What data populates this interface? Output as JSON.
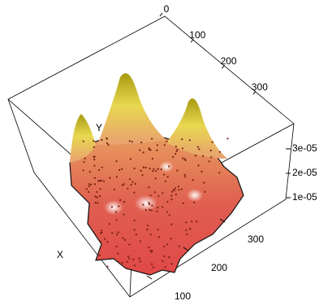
{
  "chart_data": {
    "type": "surface3d",
    "xlabel": "X",
    "ylabel": "Y",
    "xticks": [
      100,
      200,
      300
    ],
    "yticks": [
      0,
      100,
      200,
      300
    ],
    "zticks": [
      {
        "value": 1e-05,
        "label": "1e-05"
      },
      {
        "value": 2e-05,
        "label": "2e-05"
      },
      {
        "value": 3e-05,
        "label": "3e-05"
      }
    ]
  }
}
